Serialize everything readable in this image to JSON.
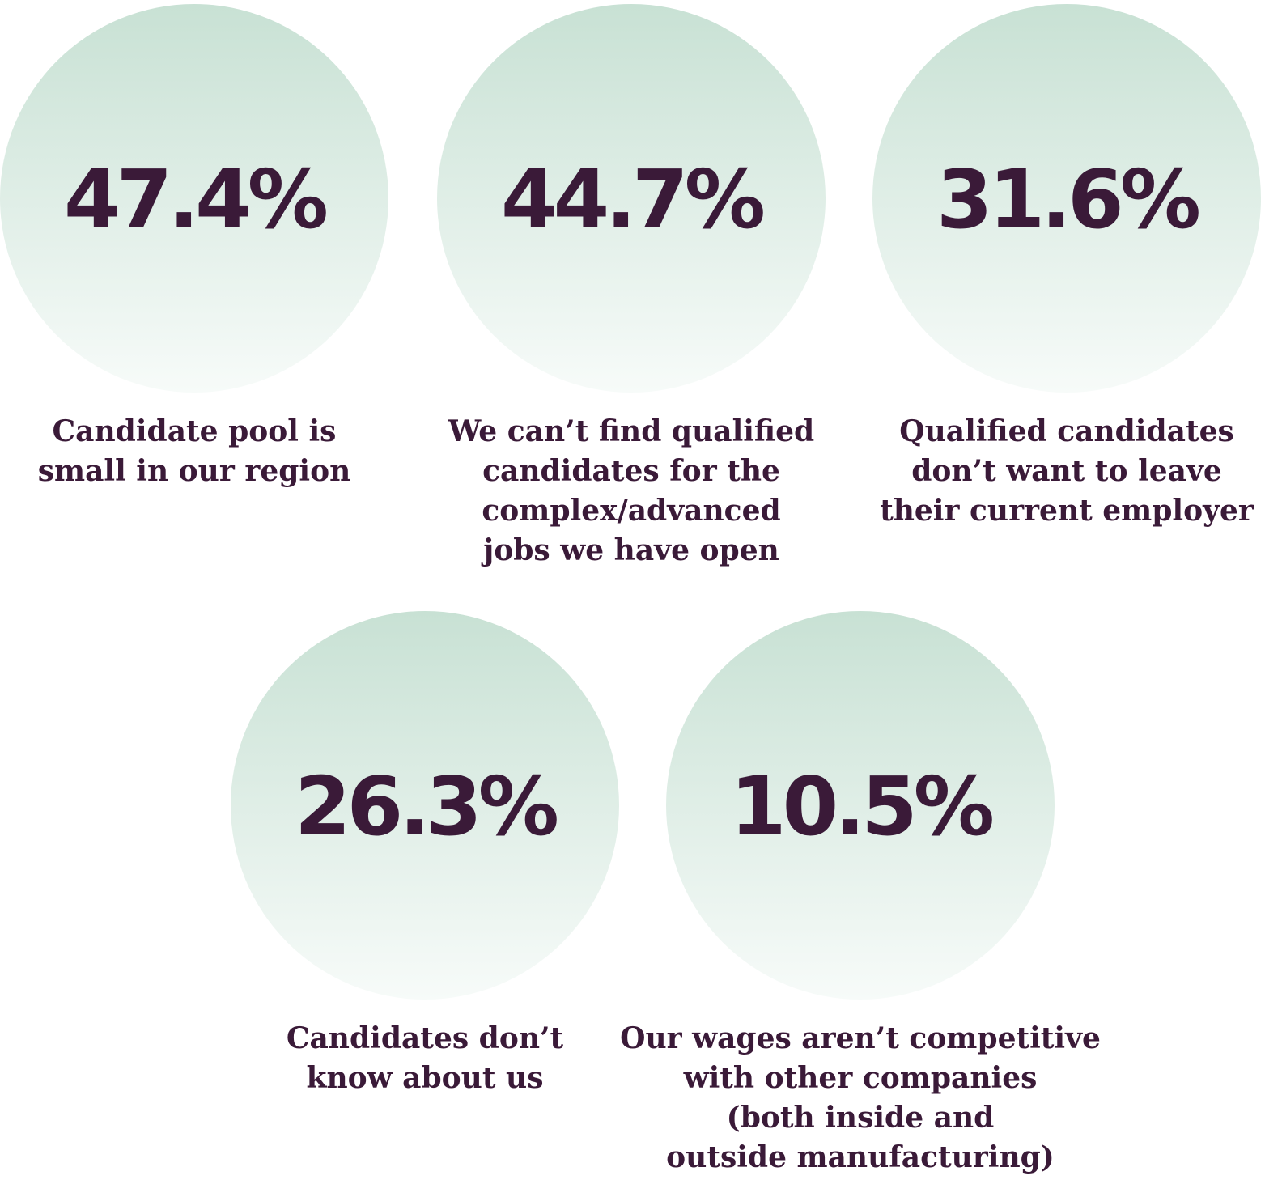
{
  "items": [
    {
      "value": "47.4%",
      "lines": [
        "Candidate pool is",
        "small in our region"
      ]
    },
    {
      "value": "44.7%",
      "lines": [
        "We can’t find qualified",
        "candidates for the",
        "complex/advanced",
        "jobs we have open"
      ]
    },
    {
      "value": "31.6%",
      "lines": [
        "Qualified candidates",
        "don’t want to leave",
        "their current employer"
      ]
    },
    {
      "value": "26.3%",
      "lines": [
        "Candidates don’t",
        "know about us"
      ]
    },
    {
      "value": "10.5%",
      "lines": [
        "Our wages aren’t competitive",
        "with other companies",
        "(both inside and",
        "outside manufacturing)"
      ]
    }
  ]
}
